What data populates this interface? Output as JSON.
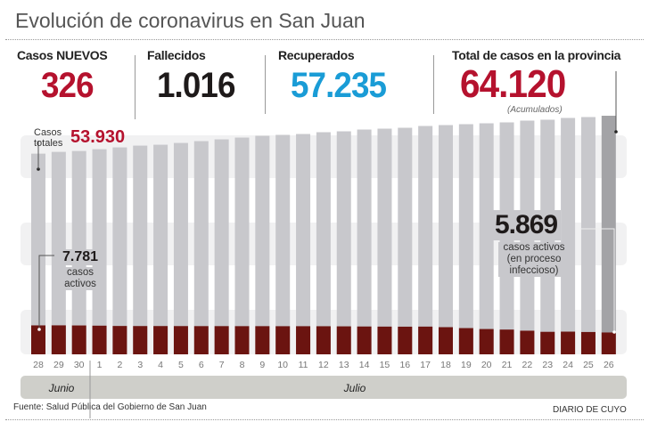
{
  "header": {
    "title": "Evolución de coronavirus en San Juan"
  },
  "stats": [
    {
      "label": "Casos NUEVOS",
      "value": "326",
      "color": "#b5122e"
    },
    {
      "label": "Fallecidos",
      "value": "1.016",
      "color": "#1e1a1a"
    },
    {
      "label": "Recuperados",
      "value": "57.235",
      "color": "#1a9cd6"
    },
    {
      "label": "Total de casos en la provincia",
      "value": "64.120",
      "color": "#b5122e",
      "note": "(Acumulados)"
    }
  ],
  "annotations": {
    "start_total_label": "Casos totales",
    "start_total_value": "53.930",
    "start_active_value": "7.781",
    "start_active_label": "casos activos",
    "end_active_value": "5.869",
    "end_active_label": "casos activos (en proceso infeccioso)"
  },
  "chart_data": {
    "type": "bar",
    "categories": [
      "28",
      "29",
      "30",
      "1",
      "2",
      "3",
      "4",
      "5",
      "6",
      "7",
      "8",
      "9",
      "10",
      "11",
      "12",
      "13",
      "14",
      "15",
      "16",
      "17",
      "18",
      "19",
      "20",
      "21",
      "22",
      "23",
      "24",
      "25",
      "26"
    ],
    "month_labels": [
      "Junio",
      "Julio"
    ],
    "series": [
      {
        "name": "Casos totales",
        "color": "#c8c8cc",
        "last_color": "#a3a3a6",
        "values": [
          53930,
          54410,
          54650,
          55130,
          55610,
          56090,
          56330,
          56810,
          57290,
          57770,
          58250,
          58730,
          58970,
          59210,
          59690,
          59930,
          60410,
          60650,
          60890,
          61370,
          61610,
          61850,
          62090,
          62330,
          62810,
          63050,
          63530,
          63770,
          64120
        ]
      },
      {
        "name": "casos activos",
        "color": "#6b1410",
        "values": [
          7781,
          7790,
          7760,
          7700,
          7620,
          7600,
          7600,
          7590,
          7580,
          7580,
          7570,
          7570,
          7560,
          7560,
          7550,
          7520,
          7480,
          7450,
          7430,
          7450,
          7300,
          7050,
          6800,
          6650,
          6350,
          6050,
          6100,
          6000,
          5869
        ]
      }
    ],
    "ylim": [
      0,
      64120
    ],
    "grid": false
  },
  "footer": {
    "source": "Fuente: Salud Pública del Gobierno de San Juan",
    "brand": "DIARIO DE CUYO"
  }
}
